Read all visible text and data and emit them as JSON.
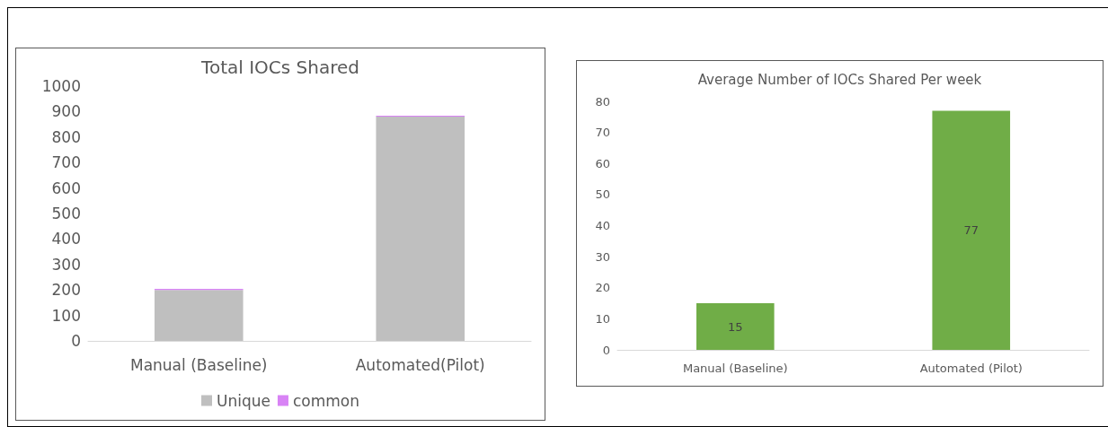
{
  "chart_data": [
    {
      "type": "bar",
      "title": "Total IOCs Shared",
      "categories": [
        "Manual (Baseline)",
        "Automated(Pilot)"
      ],
      "stacked": true,
      "series": [
        {
          "name": "Unique",
          "color": "#bfbfbf",
          "values": [
            200,
            880
          ]
        },
        {
          "name": "common",
          "color": "#d883f5",
          "values": [
            4,
            4
          ]
        }
      ],
      "ylim": [
        0,
        1000
      ],
      "yticks": [
        0,
        100,
        200,
        300,
        400,
        500,
        600,
        700,
        800,
        900,
        1000
      ],
      "grid": false,
      "legend": "bottom"
    },
    {
      "type": "bar",
      "title": "Average Number of IOCs Shared Per week",
      "categories": [
        "Manual (Baseline)",
        "Automated (Pilot)"
      ],
      "series": [
        {
          "color": "#70ad47",
          "values": [
            15,
            77
          ]
        }
      ],
      "ylim": [
        0,
        80
      ],
      "yticks": [
        0,
        10,
        20,
        30,
        40,
        50,
        60,
        70,
        80
      ],
      "grid": false,
      "data_labels": true
    }
  ]
}
